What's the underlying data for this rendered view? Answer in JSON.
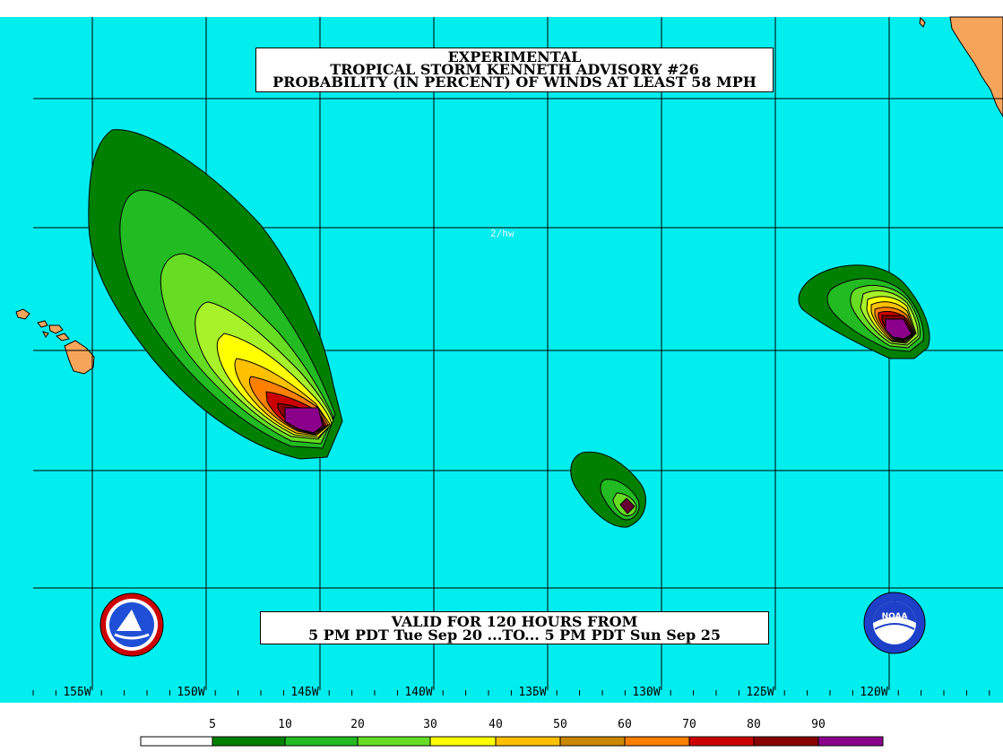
{
  "title": {
    "line1": "EXPERIMENTAL",
    "line2": "TROPICAL STORM KENNETH ADVISORY #26",
    "line3": "PROBABILITY (IN PERCENT) OF WINDS AT LEAST 58 MPH"
  },
  "valid": {
    "line1": "VALID FOR 120 HOURS FROM",
    "line2": "5 PM PDT Tue Sep 20 ...TO... 5 PM PDT Sun Sep 25"
  },
  "map_label": "2/hw",
  "longitudes": [
    "155W",
    "150W",
    "145W",
    "140W",
    "135W",
    "130W",
    "125W",
    "120W"
  ],
  "legend": {
    "labels": [
      "5",
      "10",
      "20",
      "30",
      "40",
      "50",
      "60",
      "70",
      "80",
      "90"
    ],
    "colors": [
      "#ffffff",
      "#008000",
      "#22bb22",
      "#66dd22",
      "#a8f22a",
      "#ffff00",
      "#ffc000",
      "#cc8800",
      "#ff7f00",
      "#cc0000",
      "#880000",
      "#8b008b"
    ]
  },
  "logos": {
    "nws": "NATIONAL WEATHER SERVICE",
    "noaa": "NOAA"
  },
  "colors": {
    "ocean": "#00eeee",
    "land": "#f5a55a",
    "grid": "#000000"
  }
}
